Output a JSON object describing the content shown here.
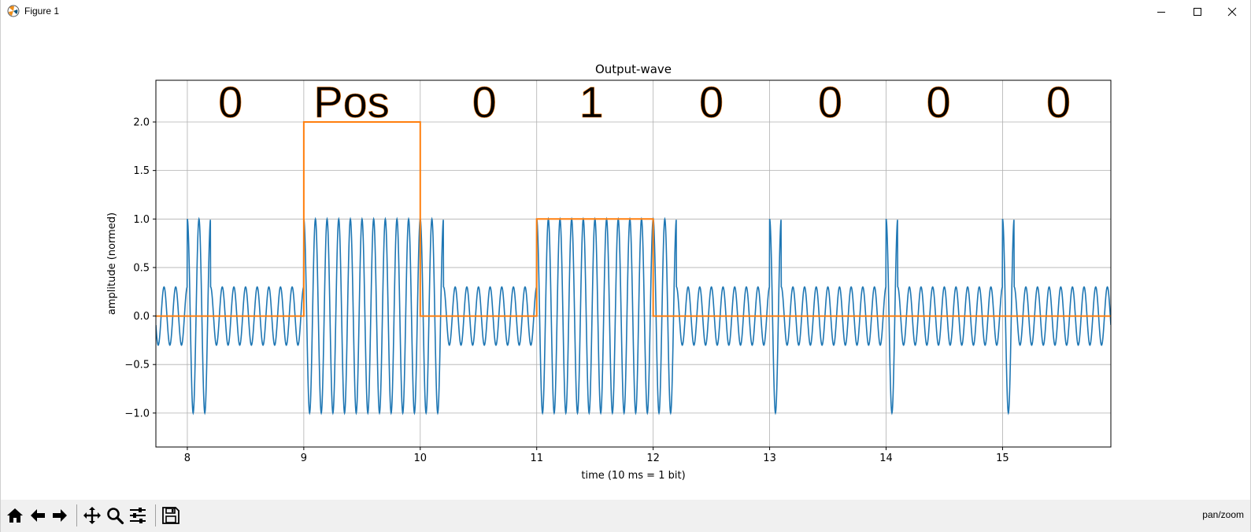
{
  "window": {
    "title": "Figure 1"
  },
  "toolbar": {
    "buttons": [
      "home-icon",
      "back-icon",
      "forward-icon",
      "pan-icon",
      "zoom-icon",
      "configure-icon",
      "save-icon"
    ],
    "status": "pan/zoom"
  },
  "chart_data": {
    "type": "line",
    "title": "Output-wave",
    "xlabel": "time (10 ms = 1 bit)",
    "ylabel": "amplitude (normed)",
    "xlim": [
      7.73,
      15.93
    ],
    "ylim": [
      -1.35,
      2.43
    ],
    "xticks": [
      "8",
      "9",
      "10",
      "11",
      "12",
      "13",
      "14",
      "15"
    ],
    "yticks": [
      "−1.0",
      "−0.5",
      "0.0",
      "0.5",
      "1.0",
      "1.5",
      "2.0"
    ],
    "grid": true,
    "bit_labels": [
      "0",
      "Pos",
      "0",
      "1",
      "0",
      "0",
      "0",
      "0"
    ],
    "series": [
      {
        "color": "#1f77b4",
        "description_points": "carrier oscillation: 0.3 amplitude baseline; 1.0 amplitude bursts 8.0-8.2, 9-10, 10.0-10.2, 11-12, 12.0-12.2, 13.0-13.1, 14.0-14.1, 15.0-15.1"
      },
      {
        "color": "#ff7f0e",
        "x": [
          7.73,
          9.0,
          9.0,
          10.0,
          10.0,
          11.0,
          11.0,
          12.0,
          12.0,
          15.93
        ],
        "y": [
          0.0,
          0.0,
          2.0,
          2.0,
          0.0,
          0.0,
          1.0,
          1.0,
          0.0,
          0.0
        ]
      }
    ]
  }
}
